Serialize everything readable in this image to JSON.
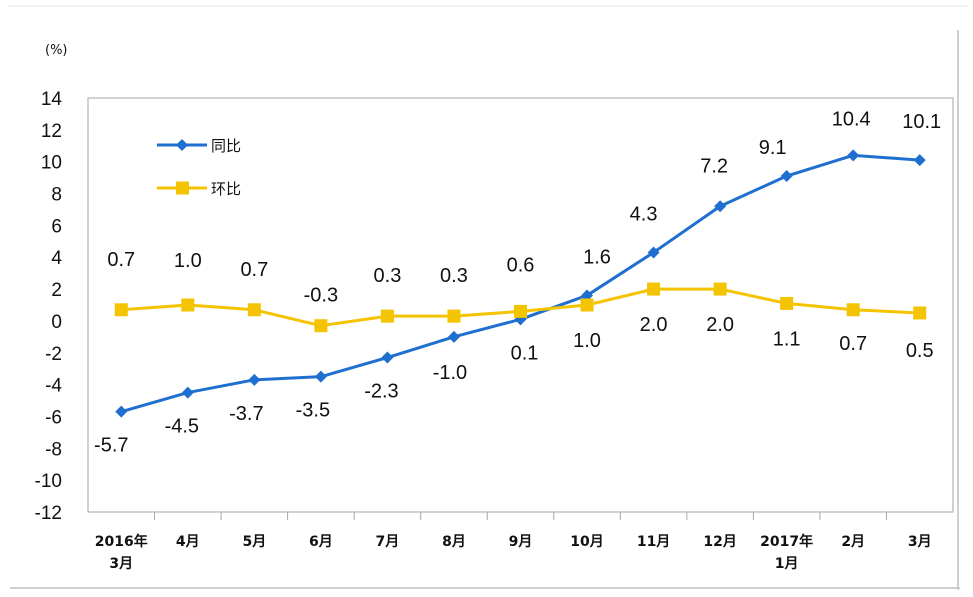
{
  "chart_data": {
    "type": "line",
    "title": "",
    "unit_label": "(%)",
    "ylim": [
      -12,
      14
    ],
    "yticks": [
      "14",
      "12",
      "10",
      "8",
      "6",
      "4",
      "2",
      "0",
      "-2",
      "-4",
      "-6",
      "-8",
      "-10",
      "-12"
    ],
    "categories": [
      [
        "2016年",
        "3月"
      ],
      [
        "4月"
      ],
      [
        "5月"
      ],
      [
        "6月"
      ],
      [
        "7月"
      ],
      [
        "8月"
      ],
      [
        "9月"
      ],
      [
        "10月"
      ],
      [
        "11月"
      ],
      [
        "12月"
      ],
      [
        "2017年",
        "1月"
      ],
      [
        "2月"
      ],
      [
        "3月"
      ]
    ],
    "legend": "top-left",
    "series": [
      {
        "name": "同比",
        "color": "#1f6fd1",
        "marker": "diamond",
        "values": [
          -5.7,
          -4.5,
          -3.7,
          -3.5,
          -2.3,
          -1.0,
          0.1,
          1.6,
          4.3,
          7.2,
          9.1,
          10.4,
          10.1
        ],
        "labels": [
          "-5.7",
          "-4.5",
          "-3.7",
          "-3.5",
          "-2.3",
          "-1.0",
          "0.1",
          "1.6",
          "4.3",
          "7.2",
          "9.1",
          "10.4",
          "10.1"
        ]
      },
      {
        "name": "环比",
        "color": "#f5c400",
        "marker": "square",
        "values": [
          0.7,
          1.0,
          0.7,
          -0.3,
          0.3,
          0.3,
          0.6,
          1.0,
          2.0,
          2.0,
          1.1,
          0.7,
          0.5
        ],
        "labels": [
          "0.7",
          "1.0",
          "0.7",
          "-0.3",
          "0.3",
          "0.3",
          "0.6",
          "1.0",
          "2.0",
          "2.0",
          "1.1",
          "0.7",
          "0.5"
        ]
      }
    ]
  }
}
